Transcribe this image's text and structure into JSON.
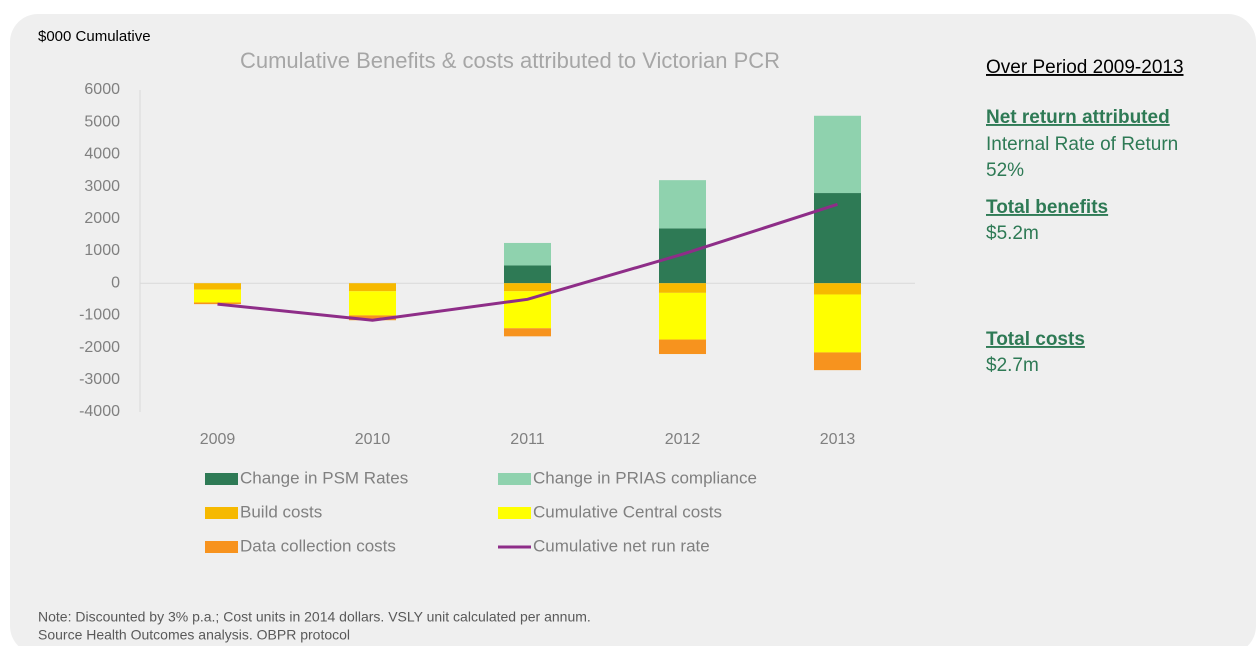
{
  "chart_data": {
    "type": "bar",
    "title": "Cumulative Benefits & costs attributed to Victorian PCR",
    "ylabel": "$000 Cumulative",
    "categories": [
      "2009",
      "2010",
      "2011",
      "2012",
      "2013"
    ],
    "ylim": [
      -4000,
      6000
    ],
    "yticks": [
      -4000,
      -3000,
      -2000,
      -1000,
      0,
      1000,
      2000,
      3000,
      4000,
      5000,
      6000
    ],
    "series": [
      {
        "name": "Change in PSM Rates",
        "color": "#2e7a55",
        "values": [
          0,
          0,
          550,
          1700,
          2800
        ]
      },
      {
        "name": "Change in PRIAS compliance",
        "color": "#8fd2ae",
        "values": [
          0,
          0,
          700,
          1500,
          2400
        ]
      },
      {
        "name": "Build costs",
        "color": "#f6b900",
        "values": [
          -200,
          -250,
          -250,
          -300,
          -350
        ]
      },
      {
        "name": "Cumulative Central costs",
        "color": "#ffff00",
        "values": [
          -400,
          -750,
          -1150,
          -1450,
          -1800
        ]
      },
      {
        "name": "Data collection costs",
        "color": "#f7931e",
        "values": [
          -50,
          -150,
          -250,
          -450,
          -550
        ]
      },
      {
        "name": "Cumulative net run rate",
        "color": "#8e2d88",
        "type": "line",
        "values": [
          -650,
          -1150,
          -500,
          900,
          2450
        ]
      }
    ]
  },
  "side_panel": {
    "heading": "Over Period 2009-2013",
    "net_return": "Net return attributed",
    "irr_label": "Internal Rate of Return",
    "irr_value": "52%",
    "benefits_label": "Total benefits",
    "benefits_value": "$5.2m",
    "costs_label": "Total costs",
    "costs_value": "$2.7m"
  },
  "notes": [
    "Note: Discounted by 3% p.a.; Cost units in 2014 dollars. VSLY unit calculated per annum.",
    "Source Health Outcomes analysis. OBPR protocol"
  ]
}
